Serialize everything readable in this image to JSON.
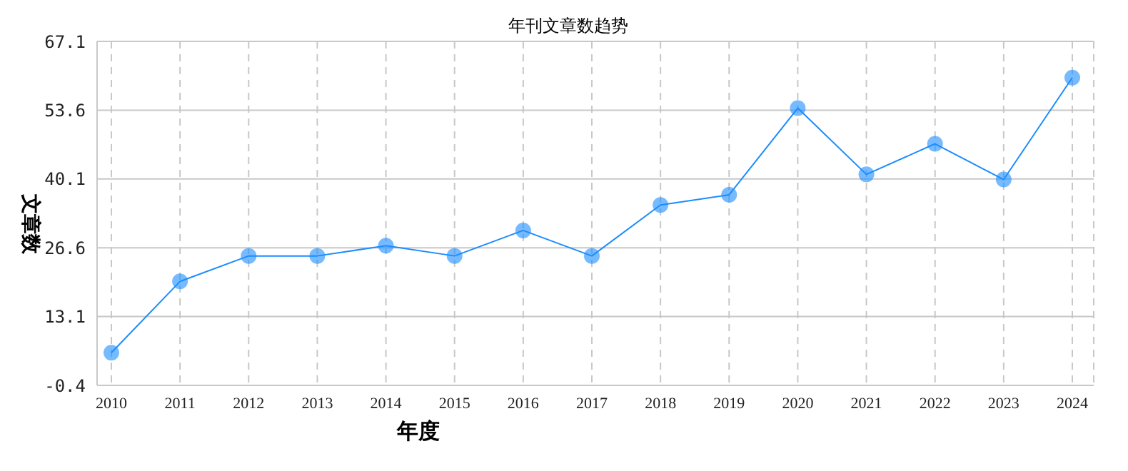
{
  "chart_data": {
    "type": "line",
    "title": "年刊文章数趋势",
    "xlabel": "年度",
    "ylabel": "文章数",
    "categories": [
      "2010",
      "2011",
      "2012",
      "2013",
      "2014",
      "2015",
      "2016",
      "2017",
      "2018",
      "2019",
      "2020",
      "2021",
      "2022",
      "2023",
      "2024"
    ],
    "series": [
      {
        "color": "#1a8cff",
        "values": [
          6,
          20,
          25,
          25,
          27,
          25,
          30,
          25,
          35,
          37,
          54,
          41,
          47,
          40,
          60
        ]
      }
    ],
    "ylim": [
      -0.4,
      67.1
    ],
    "yticks": [
      -0.4,
      13.1,
      26.6,
      40.1,
      53.6,
      67.1
    ],
    "grid": true,
    "marker": "circle",
    "line_style": "solid"
  }
}
